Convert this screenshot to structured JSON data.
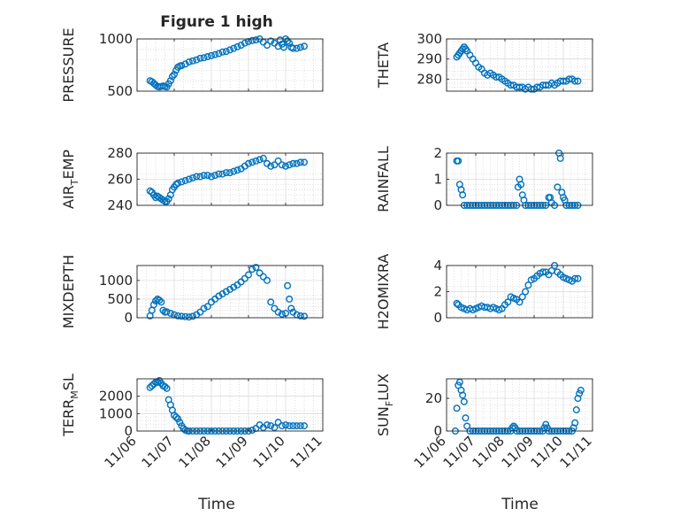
{
  "figure": {
    "title": "Figure 1 high",
    "xlabel": "Time"
  },
  "style": {
    "marker_color": "#0072BD",
    "axes_color": "#262626",
    "grid_color": "#dcdcdc"
  },
  "chart_data": [
    {
      "type": "scatter",
      "ylabel": "PRESSURE",
      "ylim": [
        500,
        1000
      ],
      "yticks": [
        "500",
        "1000"
      ],
      "xticks": [
        "11/06",
        "11/07",
        "11/08",
        "11/09",
        "11/10",
        "11/11"
      ],
      "xlim": [
        0,
        5
      ],
      "grid": "on",
      "x": [
        0.35,
        0.4,
        0.45,
        0.5,
        0.55,
        0.6,
        0.65,
        0.7,
        0.75,
        0.8,
        0.85,
        0.9,
        0.95,
        1.0,
        1.05,
        1.1,
        1.15,
        1.2,
        1.3,
        1.4,
        1.5,
        1.6,
        1.7,
        1.8,
        1.9,
        2.0,
        2.1,
        2.2,
        2.3,
        2.4,
        2.5,
        2.6,
        2.7,
        2.8,
        2.9,
        3.0,
        3.1,
        3.2,
        3.3,
        3.4,
        3.5,
        3.6,
        3.7,
        3.8,
        3.85,
        3.9,
        3.95,
        4.0,
        4.05,
        4.1,
        4.15,
        4.2,
        4.3,
        4.4,
        4.5
      ],
      "y": [
        600,
        590,
        575,
        560,
        545,
        540,
        545,
        550,
        545,
        540,
        570,
        600,
        640,
        660,
        700,
        730,
        740,
        745,
        760,
        780,
        790,
        800,
        815,
        820,
        830,
        840,
        850,
        860,
        875,
        880,
        895,
        910,
        925,
        940,
        960,
        975,
        985,
        990,
        1000,
        970,
        940,
        980,
        960,
        930,
        990,
        950,
        920,
        1000,
        980,
        960,
        920,
        910,
        910,
        920,
        930
      ]
    },
    {
      "type": "scatter",
      "ylabel": "THETA",
      "ylim": [
        274,
        300
      ],
      "yticks": [
        "280",
        "290",
        "300"
      ],
      "xticks": [
        "11/06",
        "11/07",
        "11/08",
        "11/09",
        "11/10",
        "11/11"
      ],
      "xlim": [
        0,
        5
      ],
      "grid": "on",
      "x": [
        0.35,
        0.4,
        0.45,
        0.5,
        0.55,
        0.6,
        0.65,
        0.7,
        0.8,
        0.9,
        1.0,
        1.1,
        1.2,
        1.3,
        1.4,
        1.5,
        1.6,
        1.7,
        1.8,
        1.9,
        2.0,
        2.1,
        2.2,
        2.3,
        2.4,
        2.5,
        2.6,
        2.7,
        2.8,
        2.9,
        3.0,
        3.1,
        3.2,
        3.3,
        3.4,
        3.5,
        3.6,
        3.7,
        3.8,
        3.9,
        4.0,
        4.1,
        4.2,
        4.3,
        4.4,
        4.5
      ],
      "y": [
        291,
        292,
        293,
        294,
        295,
        296,
        295,
        294,
        292,
        290,
        288,
        286,
        285,
        283,
        282,
        283,
        282,
        281,
        281,
        280,
        279,
        278,
        277,
        277,
        276,
        276,
        276,
        275,
        276,
        275,
        275,
        276,
        276,
        277,
        277,
        277,
        278,
        277,
        278,
        279,
        279,
        279,
        280,
        280,
        279,
        279
      ]
    },
    {
      "type": "scatter",
      "ylabel": "AIR_TEMP",
      "ylim": [
        240,
        280
      ],
      "yticks": [
        "240",
        "260",
        "280"
      ],
      "xticks": [
        "11/06",
        "11/07",
        "11/08",
        "11/09",
        "11/10",
        "11/11"
      ],
      "xlim": [
        0,
        5
      ],
      "grid": "on",
      "x": [
        0.35,
        0.4,
        0.45,
        0.5,
        0.55,
        0.6,
        0.65,
        0.7,
        0.75,
        0.8,
        0.85,
        0.9,
        0.95,
        1.0,
        1.05,
        1.1,
        1.2,
        1.3,
        1.4,
        1.5,
        1.6,
        1.7,
        1.8,
        1.9,
        2.0,
        2.1,
        2.2,
        2.3,
        2.4,
        2.5,
        2.6,
        2.7,
        2.8,
        2.9,
        3.0,
        3.1,
        3.2,
        3.3,
        3.4,
        3.5,
        3.6,
        3.7,
        3.8,
        3.9,
        4.0,
        4.1,
        4.2,
        4.3,
        4.4,
        4.5
      ],
      "y": [
        251,
        250,
        248,
        246,
        247,
        246,
        245,
        244,
        243,
        243,
        245,
        248,
        252,
        254,
        256,
        257,
        258,
        259,
        260,
        261,
        262,
        262,
        263,
        263,
        262,
        263,
        264,
        264,
        265,
        265,
        266,
        267,
        268,
        270,
        272,
        273,
        274,
        275,
        276,
        272,
        270,
        271,
        274,
        271,
        270,
        271,
        272,
        272,
        273,
        273
      ]
    },
    {
      "type": "scatter",
      "ylabel": "RAINFALL",
      "ylim": [
        0,
        2
      ],
      "yticks": [
        "0",
        "1",
        "2"
      ],
      "xticks": [
        "11/06",
        "11/07",
        "11/08",
        "11/09",
        "11/10",
        "11/11"
      ],
      "xlim": [
        0,
        5
      ],
      "grid": "on",
      "x": [
        0.35,
        0.4,
        0.45,
        0.5,
        0.55,
        0.6,
        0.7,
        0.8,
        0.9,
        1.0,
        1.1,
        1.2,
        1.3,
        1.4,
        1.5,
        1.6,
        1.7,
        1.8,
        1.9,
        2.0,
        2.1,
        2.2,
        2.3,
        2.4,
        2.45,
        2.5,
        2.55,
        2.6,
        2.65,
        2.7,
        2.8,
        2.9,
        3.0,
        3.1,
        3.2,
        3.3,
        3.4,
        3.5,
        3.55,
        3.6,
        3.7,
        3.8,
        3.85,
        3.9,
        3.95,
        4.0,
        4.05,
        4.1,
        4.2,
        4.3,
        4.4,
        4.5
      ],
      "y": [
        1.7,
        1.7,
        0.8,
        0.6,
        0.4,
        0,
        0,
        0,
        0,
        0,
        0,
        0,
        0,
        0,
        0,
        0,
        0,
        0,
        0,
        0,
        0,
        0,
        0,
        0,
        0.7,
        1.0,
        0.8,
        0.4,
        0.2,
        0,
        0,
        0,
        0,
        0,
        0,
        0,
        0,
        0.3,
        0.3,
        0.1,
        0,
        0.7,
        2.0,
        1.8,
        0.5,
        0.3,
        0.2,
        0,
        0,
        0,
        0,
        0
      ]
    },
    {
      "type": "scatter",
      "ylabel": "MIXDEPTH",
      "ylim": [
        0,
        1400
      ],
      "yticks": [
        "0",
        "500",
        "1000"
      ],
      "xticks": [
        "11/06",
        "11/07",
        "11/08",
        "11/09",
        "11/10",
        "11/11"
      ],
      "xlim": [
        0,
        5
      ],
      "grid": "on",
      "x": [
        0.35,
        0.4,
        0.45,
        0.5,
        0.55,
        0.6,
        0.65,
        0.7,
        0.75,
        0.8,
        0.9,
        1.0,
        1.1,
        1.2,
        1.3,
        1.4,
        1.5,
        1.6,
        1.7,
        1.8,
        1.9,
        2.0,
        2.1,
        2.2,
        2.3,
        2.4,
        2.5,
        2.6,
        2.7,
        2.8,
        2.9,
        3.0,
        3.1,
        3.2,
        3.3,
        3.4,
        3.5,
        3.6,
        3.7,
        3.8,
        3.9,
        4.0,
        4.05,
        4.1,
        4.15,
        4.2,
        4.3,
        4.4,
        4.5
      ],
      "y": [
        50,
        200,
        350,
        450,
        500,
        470,
        420,
        200,
        150,
        160,
        120,
        80,
        50,
        40,
        30,
        20,
        40,
        80,
        150,
        250,
        300,
        420,
        500,
        580,
        640,
        700,
        760,
        820,
        880,
        960,
        1050,
        1150,
        1300,
        1350,
        1200,
        1100,
        1000,
        420,
        250,
        150,
        100,
        120,
        860,
        500,
        250,
        150,
        80,
        50,
        40
      ]
    },
    {
      "type": "scatter",
      "ylabel": "H2OMIXRA",
      "ylim": [
        0,
        4
      ],
      "yticks": [
        "0",
        "2",
        "4"
      ],
      "xticks": [
        "11/06",
        "11/07",
        "11/08",
        "11/09",
        "11/10",
        "11/11"
      ],
      "xlim": [
        0,
        5
      ],
      "grid": "on",
      "x": [
        0.35,
        0.4,
        0.5,
        0.6,
        0.7,
        0.8,
        0.9,
        1.0,
        1.1,
        1.2,
        1.3,
        1.4,
        1.5,
        1.6,
        1.7,
        1.8,
        1.9,
        2.0,
        2.1,
        2.2,
        2.3,
        2.4,
        2.5,
        2.6,
        2.7,
        2.8,
        2.9,
        3.0,
        3.1,
        3.2,
        3.3,
        3.4,
        3.5,
        3.6,
        3.7,
        3.8,
        3.9,
        4.0,
        4.1,
        4.2,
        4.3,
        4.4,
        4.5
      ],
      "y": [
        1.1,
        1.0,
        0.8,
        0.7,
        0.6,
        0.7,
        0.6,
        0.7,
        0.8,
        0.9,
        0.8,
        0.8,
        0.7,
        0.8,
        0.7,
        0.6,
        0.7,
        1.0,
        1.2,
        1.6,
        1.5,
        1.4,
        1.2,
        1.6,
        2.0,
        2.5,
        2.9,
        3.0,
        3.2,
        3.4,
        3.5,
        3.5,
        3.3,
        3.6,
        4.0,
        3.5,
        3.3,
        3.1,
        3.0,
        2.9,
        2.8,
        3.0,
        3.0
      ]
    },
    {
      "type": "scatter",
      "ylabel": "TERR_MSL",
      "ylim": [
        0,
        3000
      ],
      "yticks": [
        "0",
        "1000",
        "2000"
      ],
      "xticks": [
        "11/06",
        "11/07",
        "11/08",
        "11/09",
        "11/10",
        "11/11"
      ],
      "xlim": [
        0,
        5
      ],
      "grid": "on",
      "x": [
        0.35,
        0.4,
        0.45,
        0.5,
        0.55,
        0.6,
        0.65,
        0.7,
        0.75,
        0.8,
        0.85,
        0.9,
        0.95,
        1.0,
        1.05,
        1.1,
        1.15,
        1.2,
        1.25,
        1.3,
        1.35,
        1.4,
        1.5,
        1.6,
        1.7,
        1.8,
        1.9,
        2.0,
        2.1,
        2.2,
        2.3,
        2.4,
        2.5,
        2.6,
        2.7,
        2.8,
        2.9,
        3.0,
        3.1,
        3.2,
        3.3,
        3.4,
        3.5,
        3.6,
        3.7,
        3.8,
        3.9,
        4.0,
        4.1,
        4.2,
        4.3,
        4.4,
        4.5
      ],
      "y": [
        2500,
        2600,
        2700,
        2800,
        2800,
        2900,
        2750,
        2600,
        2550,
        2450,
        1800,
        1500,
        1200,
        900,
        800,
        700,
        500,
        300,
        150,
        50,
        10,
        0,
        0,
        0,
        0,
        0,
        0,
        0,
        0,
        0,
        0,
        0,
        0,
        0,
        0,
        0,
        0,
        0,
        50,
        150,
        350,
        200,
        350,
        300,
        200,
        500,
        300,
        350,
        300,
        300,
        300,
        300,
        300
      ]
    },
    {
      "type": "scatter",
      "ylabel": "SUN_FLUX",
      "ylim": [
        0,
        32
      ],
      "yticks": [
        "0",
        "20"
      ],
      "xticks": [
        "11/06",
        "11/07",
        "11/08",
        "11/09",
        "11/10",
        "11/11"
      ],
      "xlim": [
        0,
        5
      ],
      "grid": "on",
      "x": [
        0.3,
        0.35,
        0.4,
        0.45,
        0.5,
        0.55,
        0.6,
        0.65,
        0.7,
        0.8,
        0.9,
        1.0,
        1.1,
        1.2,
        1.3,
        1.4,
        1.5,
        1.6,
        1.7,
        1.8,
        1.9,
        2.0,
        2.1,
        2.2,
        2.25,
        2.3,
        2.35,
        2.4,
        2.5,
        2.6,
        2.7,
        2.8,
        2.9,
        3.0,
        3.1,
        3.2,
        3.3,
        3.35,
        3.4,
        3.45,
        3.5,
        3.6,
        3.7,
        3.8,
        3.9,
        4.0,
        4.1,
        4.2,
        4.3,
        4.35,
        4.4,
        4.45,
        4.5,
        4.55,
        4.6
      ],
      "y": [
        0,
        14,
        28,
        30,
        25,
        22,
        18,
        8,
        3,
        0,
        0,
        0,
        0,
        0,
        0,
        0,
        0,
        0,
        0,
        0,
        0,
        0,
        0,
        0,
        2,
        3,
        2,
        0,
        0,
        0,
        0,
        0,
        0,
        0,
        0,
        0,
        0,
        2,
        4,
        2,
        0,
        0,
        0,
        0,
        0,
        0,
        0,
        0,
        0,
        2,
        5,
        13,
        20,
        23,
        25
      ]
    }
  ]
}
